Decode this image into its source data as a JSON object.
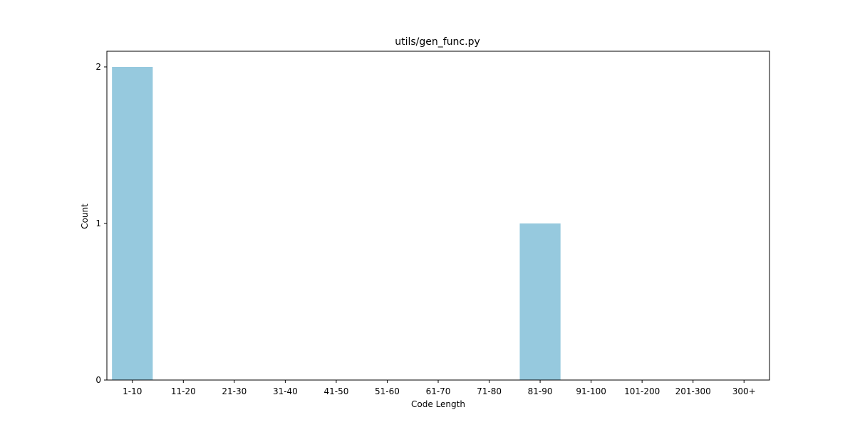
{
  "chart_data": {
    "type": "bar",
    "title": "utils/gen_func.py",
    "xlabel": "Code Length",
    "ylabel": "Count",
    "categories": [
      "1-10",
      "11-20",
      "21-30",
      "31-40",
      "41-50",
      "51-60",
      "61-70",
      "71-80",
      "81-90",
      "91-100",
      "101-200",
      "201-300",
      "300+"
    ],
    "values": [
      2,
      0,
      0,
      0,
      0,
      0,
      0,
      0,
      1,
      0,
      0,
      0,
      0
    ],
    "ylim": [
      0,
      2.1
    ],
    "yticks": [
      0,
      1,
      2
    ],
    "bar_color": "#96c9de",
    "grid": false,
    "legend": "none"
  }
}
